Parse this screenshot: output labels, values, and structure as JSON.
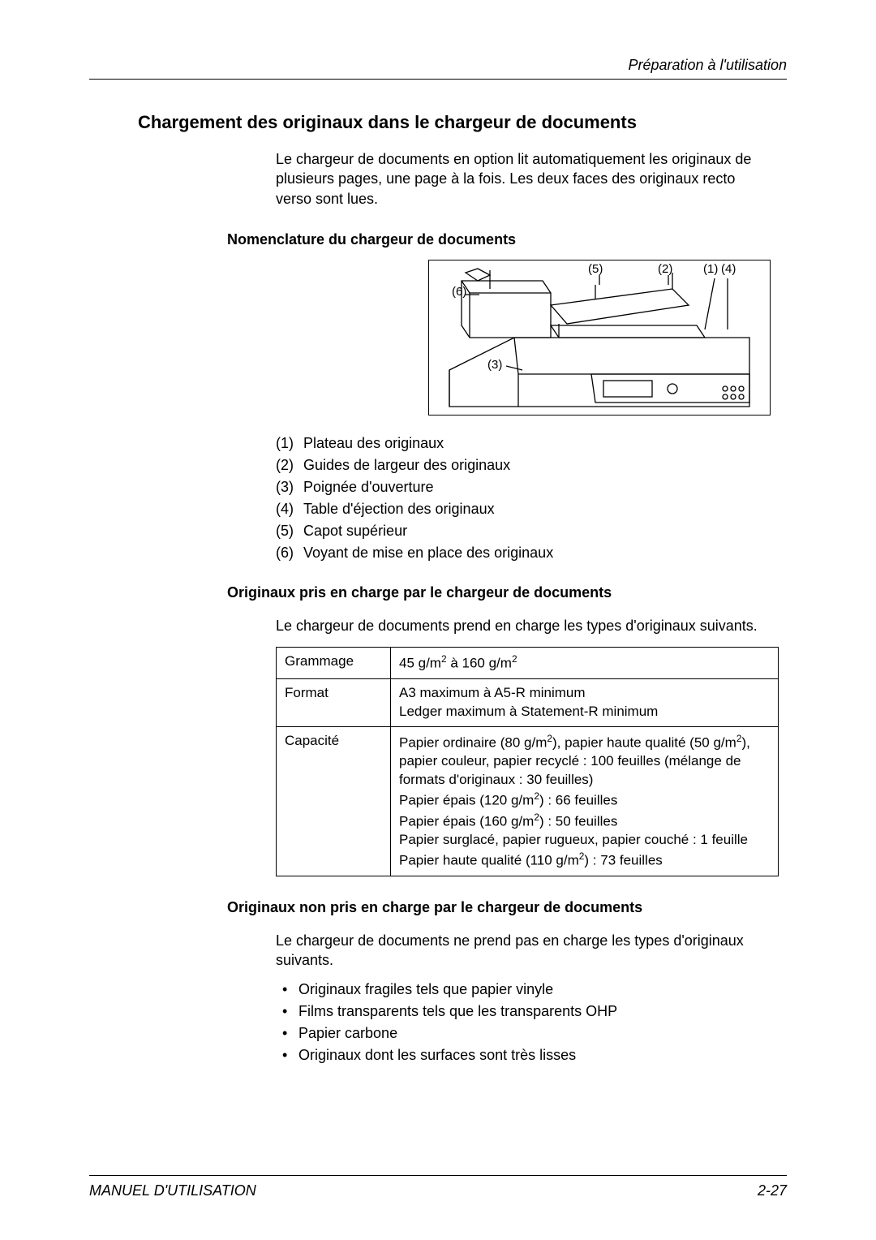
{
  "header": {
    "right": "Préparation à l'utilisation"
  },
  "chapter_title": "Chargement des originaux dans le chargeur de documents",
  "intro": "Le chargeur de documents en option lit automatiquement les originaux de plusieurs pages, une page à la fois. Les deux faces des originaux recto verso sont lues.",
  "section_nomenclature": "Nomenclature du chargeur de documents",
  "diagram": {
    "callouts": {
      "c1": "(1)",
      "c2": "(2)",
      "c3": "(3)",
      "c4": "(4)",
      "c5": "(5)",
      "c6": "(6)"
    }
  },
  "legend": [
    {
      "num": "(1)",
      "text": "Plateau des originaux"
    },
    {
      "num": "(2)",
      "text": "Guides de largeur des originaux"
    },
    {
      "num": "(3)",
      "text": "Poignée d'ouverture"
    },
    {
      "num": "(4)",
      "text": "Table d'éjection des originaux"
    },
    {
      "num": "(5)",
      "text": "Capot supérieur"
    },
    {
      "num": "(6)",
      "text": "Voyant de mise en place des originaux"
    }
  ],
  "section_supported": "Originaux pris en charge par le chargeur de documents",
  "supported_intro": "Le chargeur de documents prend en charge les types d'originaux suivants.",
  "table": {
    "rows": [
      {
        "label": "Grammage",
        "value_html": "45 g/m<sup>2</sup> à 160 g/m<sup>2</sup>"
      },
      {
        "label": "Format",
        "value_html": "A3 maximum à A5-R minimum<br>Ledger maximum à Statement-R minimum"
      },
      {
        "label": "Capacité",
        "value_html": "Papier ordinaire (80 g/m<sup>2</sup>), papier haute qualité (50 g/m<sup>2</sup>), papier couleur, papier recyclé : 100 feuilles (mélange de formats d'originaux : 30 feuilles)<br>Papier épais (120 g/m<sup>2</sup>) : 66 feuilles<br>Papier épais (160 g/m<sup>2</sup>) : 50 feuilles<br>Papier surglacé, papier rugueux, papier couché : 1 feuille<br>Papier haute qualité (110 g/m<sup>2</sup>) : 73 feuilles"
      }
    ]
  },
  "section_unsupported": "Originaux non pris en charge par le chargeur de documents",
  "unsupported_intro": "Le chargeur de documents ne prend pas en charge les types d'originaux suivants.",
  "unsupported_items": [
    "Originaux fragiles tels que papier vinyle",
    "Films transparents tels que les transparents OHP",
    "Papier carbone",
    "Originaux dont les surfaces sont très lisses"
  ],
  "footer": {
    "left": "MANUEL D'UTILISATION",
    "right": "2-27"
  }
}
